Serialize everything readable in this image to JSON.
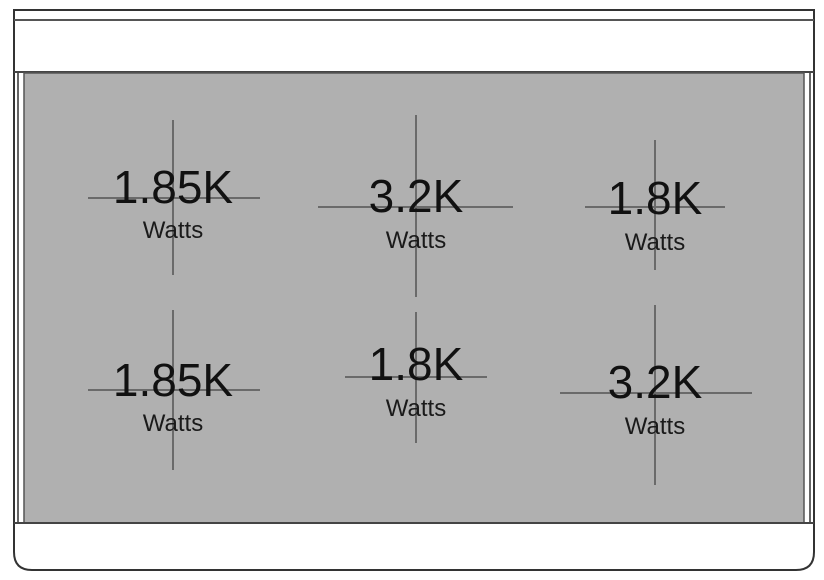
{
  "colors": {
    "surface": "#b0b0b0",
    "frame": "#333333",
    "crosshair": "#6a6a6a"
  },
  "burners": [
    {
      "power": "1.85K",
      "unit": "Watts"
    },
    {
      "power": "3.2K",
      "unit": "Watts"
    },
    {
      "power": "1.8K",
      "unit": "Watts"
    },
    {
      "power": "1.85K",
      "unit": "Watts"
    },
    {
      "power": "1.8K",
      "unit": "Watts"
    },
    {
      "power": "3.2K",
      "unit": "Watts"
    }
  ]
}
